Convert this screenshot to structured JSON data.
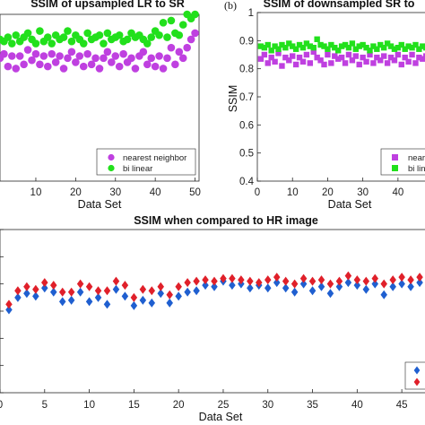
{
  "colors": {
    "nearest": "#bf40e0",
    "bilinear": "#22e01c",
    "hr_blue": "#1f5fd0",
    "hr_red": "#e0202a",
    "axis": "#262626"
  },
  "chart_data": [
    {
      "type": "scatter",
      "title": "SSIM of upsampled LR to SR",
      "xlabel": "Data Set",
      "ylabel": "",
      "xlim": [
        1,
        51
      ],
      "ylim": [
        0.6,
        1.0
      ],
      "xticks": [
        "10",
        "20",
        "30",
        "40",
        "50"
      ],
      "xtick_values": [
        10,
        20,
        30,
        40,
        50
      ],
      "marker": "circle",
      "legend": {
        "placement": "bottom-right",
        "entries": [
          "nearest neighbor",
          "bi linear"
        ]
      },
      "series": [
        {
          "name": "nearest neighbor",
          "color_key": "nearest",
          "x": [
            1,
            2,
            3,
            4,
            5,
            6,
            7,
            8,
            9,
            10,
            11,
            12,
            13,
            14,
            15,
            16,
            17,
            18,
            19,
            20,
            21,
            22,
            23,
            24,
            25,
            26,
            27,
            28,
            29,
            30,
            31,
            32,
            33,
            34,
            35,
            36,
            37,
            38,
            39,
            40,
            41,
            42,
            43,
            44,
            45,
            46,
            47,
            48,
            49,
            50
          ],
          "y": [
            0.895,
            0.905,
            0.875,
            0.9,
            0.87,
            0.9,
            0.88,
            0.915,
            0.89,
            0.905,
            0.88,
            0.9,
            0.875,
            0.905,
            0.885,
            0.9,
            0.87,
            0.895,
            0.91,
            0.885,
            0.9,
            0.875,
            0.905,
            0.88,
            0.895,
            0.87,
            0.895,
            0.91,
            0.885,
            0.9,
            0.875,
            0.905,
            0.885,
            0.895,
            0.87,
            0.9,
            0.91,
            0.88,
            0.895,
            0.875,
            0.9,
            0.87,
            0.895,
            0.92,
            0.88,
            0.91,
            0.895,
            0.92,
            0.94,
            0.955
          ]
        },
        {
          "name": "bi linear",
          "color_key": "bilinear",
          "x": [
            1,
            2,
            3,
            4,
            5,
            6,
            7,
            8,
            9,
            10,
            11,
            12,
            13,
            14,
            15,
            16,
            17,
            18,
            19,
            20,
            21,
            22,
            23,
            24,
            25,
            26,
            27,
            28,
            29,
            30,
            31,
            32,
            33,
            34,
            35,
            36,
            37,
            38,
            39,
            40,
            41,
            42,
            43,
            44,
            45,
            46,
            47,
            48,
            49,
            50
          ],
          "y": [
            0.94,
            0.935,
            0.945,
            0.93,
            0.95,
            0.935,
            0.945,
            0.955,
            0.94,
            0.93,
            0.96,
            0.935,
            0.945,
            0.93,
            0.95,
            0.94,
            0.945,
            0.96,
            0.935,
            0.95,
            0.94,
            0.93,
            0.955,
            0.94,
            0.945,
            0.95,
            0.93,
            0.955,
            0.94,
            0.945,
            0.95,
            0.935,
            0.94,
            0.955,
            0.945,
            0.95,
            0.94,
            0.93,
            0.945,
            0.96,
            0.95,
            0.98,
            0.945,
            0.985,
            0.955,
            0.95,
            0.975,
            1.0,
            0.99,
            1.0
          ]
        }
      ]
    },
    {
      "type": "scatter",
      "panel_label": "(b)",
      "title": "SSIM of downsampled SR to",
      "xlabel": "Data Set",
      "ylabel": "SSIM",
      "xlim": [
        0,
        51
      ],
      "ylim": [
        0.4,
        1.0
      ],
      "xticks": [
        "0",
        "10",
        "20",
        "30",
        "40"
      ],
      "xtick_values": [
        0,
        10,
        20,
        30,
        40
      ],
      "yticks": [
        "0.4",
        "0.5",
        "0.6",
        "0.7",
        "0.8",
        "0.9",
        "1"
      ],
      "ytick_values": [
        0.4,
        0.5,
        0.6,
        0.7,
        0.8,
        0.9,
        1.0
      ],
      "marker": "square",
      "legend": {
        "placement": "bottom-right",
        "entries": [
          "neare",
          "bi lin"
        ]
      },
      "series": [
        {
          "name": "nearest neighbor",
          "color_key": "nearest",
          "x": [
            1,
            2,
            3,
            4,
            5,
            6,
            7,
            8,
            9,
            10,
            11,
            12,
            13,
            14,
            15,
            16,
            17,
            18,
            19,
            20,
            21,
            22,
            23,
            24,
            25,
            26,
            27,
            28,
            29,
            30,
            31,
            32,
            33,
            34,
            35,
            36,
            37,
            38,
            39,
            40,
            41,
            42,
            43,
            44,
            45,
            46,
            47,
            48,
            49,
            50
          ],
          "y": [
            0.835,
            0.85,
            0.82,
            0.84,
            0.825,
            0.855,
            0.81,
            0.84,
            0.83,
            0.845,
            0.815,
            0.84,
            0.825,
            0.85,
            0.82,
            0.86,
            0.84,
            0.83,
            0.815,
            0.85,
            0.82,
            0.845,
            0.835,
            0.84,
            0.82,
            0.85,
            0.83,
            0.845,
            0.815,
            0.84,
            0.825,
            0.85,
            0.82,
            0.84,
            0.83,
            0.845,
            0.82,
            0.84,
            0.83,
            0.85,
            0.815,
            0.84,
            0.825,
            0.85,
            0.82,
            0.84,
            0.835,
            0.845,
            0.83,
            0.84
          ]
        },
        {
          "name": "bi linear",
          "color_key": "bilinear",
          "x": [
            1,
            2,
            3,
            4,
            5,
            6,
            7,
            8,
            9,
            10,
            11,
            12,
            13,
            14,
            15,
            16,
            17,
            18,
            19,
            20,
            21,
            22,
            23,
            24,
            25,
            26,
            27,
            28,
            29,
            30,
            31,
            32,
            33,
            34,
            35,
            36,
            37,
            38,
            39,
            40,
            41,
            42,
            43,
            44,
            45,
            46,
            47,
            48,
            49,
            50
          ],
          "y": [
            0.88,
            0.875,
            0.885,
            0.865,
            0.88,
            0.87,
            0.885,
            0.875,
            0.89,
            0.88,
            0.87,
            0.885,
            0.875,
            0.89,
            0.88,
            0.875,
            0.905,
            0.885,
            0.88,
            0.87,
            0.885,
            0.875,
            0.865,
            0.88,
            0.885,
            0.875,
            0.89,
            0.87,
            0.88,
            0.885,
            0.875,
            0.865,
            0.88,
            0.87,
            0.885,
            0.875,
            0.89,
            0.88,
            0.87,
            0.875,
            0.885,
            0.87,
            0.88,
            0.875,
            0.885,
            0.87,
            0.88,
            0.875,
            0.885,
            0.87
          ]
        }
      ]
    },
    {
      "type": "scatter",
      "title": "SSIM when compared to HR image",
      "xlabel": "Data Set",
      "ylabel": "",
      "xlim": [
        0,
        48.2
      ],
      "ylim": [
        0.4,
        1.0
      ],
      "xticks": [
        "0",
        "5",
        "10",
        "15",
        "20",
        "25",
        "30",
        "35",
        "40",
        "45"
      ],
      "xtick_values": [
        0,
        5,
        10,
        15,
        20,
        25,
        30,
        35,
        40,
        45
      ],
      "ytick_values": [
        0.4,
        0.5,
        0.6,
        0.7,
        0.8,
        0.9,
        1.0
      ],
      "marker": "diamond",
      "legend": {
        "placement": "bottom-right",
        "entries": [
          "",
          ""
        ]
      },
      "series": [
        {
          "name": "",
          "color_key": "hr_blue",
          "x": [
            1,
            2,
            3,
            4,
            5,
            6,
            7,
            8,
            9,
            10,
            11,
            12,
            13,
            14,
            15,
            16,
            17,
            18,
            19,
            20,
            21,
            22,
            23,
            24,
            25,
            26,
            27,
            28,
            29,
            30,
            31,
            32,
            33,
            34,
            35,
            36,
            37,
            38,
            39,
            40,
            41,
            42,
            43,
            44,
            45,
            46,
            47,
            48
          ],
          "y": [
            0.705,
            0.75,
            0.765,
            0.755,
            0.785,
            0.77,
            0.735,
            0.74,
            0.77,
            0.735,
            0.75,
            0.725,
            0.78,
            0.755,
            0.72,
            0.74,
            0.73,
            0.765,
            0.73,
            0.755,
            0.77,
            0.775,
            0.795,
            0.79,
            0.81,
            0.795,
            0.8,
            0.785,
            0.795,
            0.785,
            0.805,
            0.785,
            0.77,
            0.8,
            0.775,
            0.79,
            0.765,
            0.79,
            0.805,
            0.795,
            0.78,
            0.8,
            0.76,
            0.79,
            0.8,
            0.79,
            0.805,
            0.795
          ]
        },
        {
          "name": "",
          "color_key": "hr_red",
          "x": [
            1,
            2,
            3,
            4,
            5,
            6,
            7,
            8,
            9,
            10,
            11,
            12,
            13,
            14,
            15,
            16,
            17,
            18,
            19,
            20,
            21,
            22,
            23,
            24,
            25,
            26,
            27,
            28,
            29,
            30,
            31,
            32,
            33,
            34,
            35,
            36,
            37,
            38,
            39,
            40,
            41,
            42,
            43,
            44,
            45,
            46,
            47,
            48
          ],
          "y": [
            0.725,
            0.775,
            0.79,
            0.78,
            0.805,
            0.795,
            0.77,
            0.77,
            0.8,
            0.79,
            0.775,
            0.775,
            0.81,
            0.795,
            0.75,
            0.78,
            0.775,
            0.79,
            0.76,
            0.79,
            0.805,
            0.81,
            0.815,
            0.81,
            0.82,
            0.82,
            0.815,
            0.81,
            0.805,
            0.815,
            0.825,
            0.81,
            0.8,
            0.82,
            0.81,
            0.815,
            0.8,
            0.81,
            0.83,
            0.815,
            0.81,
            0.82,
            0.8,
            0.815,
            0.825,
            0.815,
            0.825,
            0.82
          ]
        }
      ]
    }
  ]
}
